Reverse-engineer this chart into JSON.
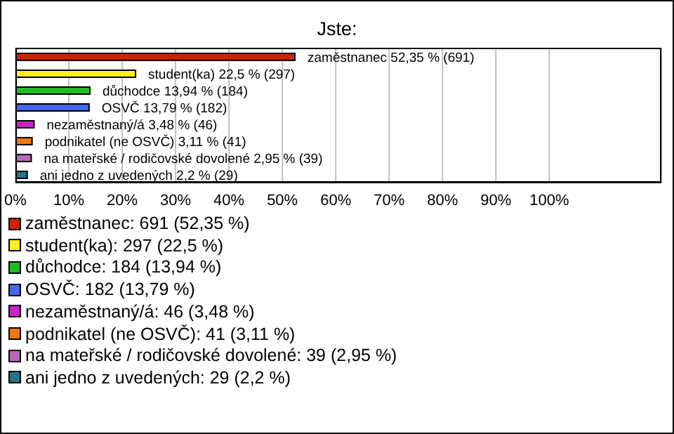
{
  "chart_data": {
    "type": "bar",
    "orientation": "horizontal",
    "title": "Jste:",
    "categories": [
      null,
      null,
      null,
      null,
      null,
      null,
      null,
      null
    ],
    "values": [
      52.35,
      22.5,
      13.94,
      13.79,
      3.48,
      3.11,
      2.95,
      2.2
    ],
    "colors": [
      "#cc2200",
      "#ffee22",
      "#22bb22",
      "#4466ee",
      "#cc22cc",
      "#ee7711",
      "#bb66bb",
      "#227788"
    ],
    "value_labels": [
      "zaměstnanec 52,35 % (691)",
      "student(ka) 22,5 % (297)",
      "důchodce 13,94 % (184)",
      "OSVČ 13,79 % (182)",
      "nezaměstnaný/á 3,48 % (46)",
      "podnikatel (ne OSVČ) 3,11 % (41)",
      "na mateřské / rodičovské dovolené 2,95 % (39)",
      "ani jedno z uvedených 2,2 % (29)"
    ],
    "xlim": [
      0,
      121
    ],
    "xticks": [
      {
        "value": 0,
        "label": "0%"
      },
      {
        "value": 10,
        "label": "10%"
      },
      {
        "value": 20,
        "label": "20%"
      },
      {
        "value": 30,
        "label": "30%"
      },
      {
        "value": 40,
        "label": "40%"
      },
      {
        "value": 50,
        "label": "50%"
      },
      {
        "value": 60,
        "label": "60%"
      },
      {
        "value": 70,
        "label": "70%"
      },
      {
        "value": 80,
        "label": "80%"
      },
      {
        "value": 90,
        "label": "90%"
      },
      {
        "value": 100,
        "label": "100%"
      }
    ],
    "grid": "x",
    "annotations": [
      "zaměstnanec: 691 (52,35 %)",
      "student(ka): 297 (22,5 %)",
      "důchodce: 184 (13,94 %)",
      "OSVČ: 182 (13,79 %)",
      "nezaměstnaný/á: 46 (3,48 %)",
      "podnikatel (ne OSVČ): 41 (3,11 %)",
      "na mateřské / rodičovské dovolené: 39 (2,95 %)",
      "ani jedno z uvedených: 29 (2,2 %)"
    ]
  }
}
